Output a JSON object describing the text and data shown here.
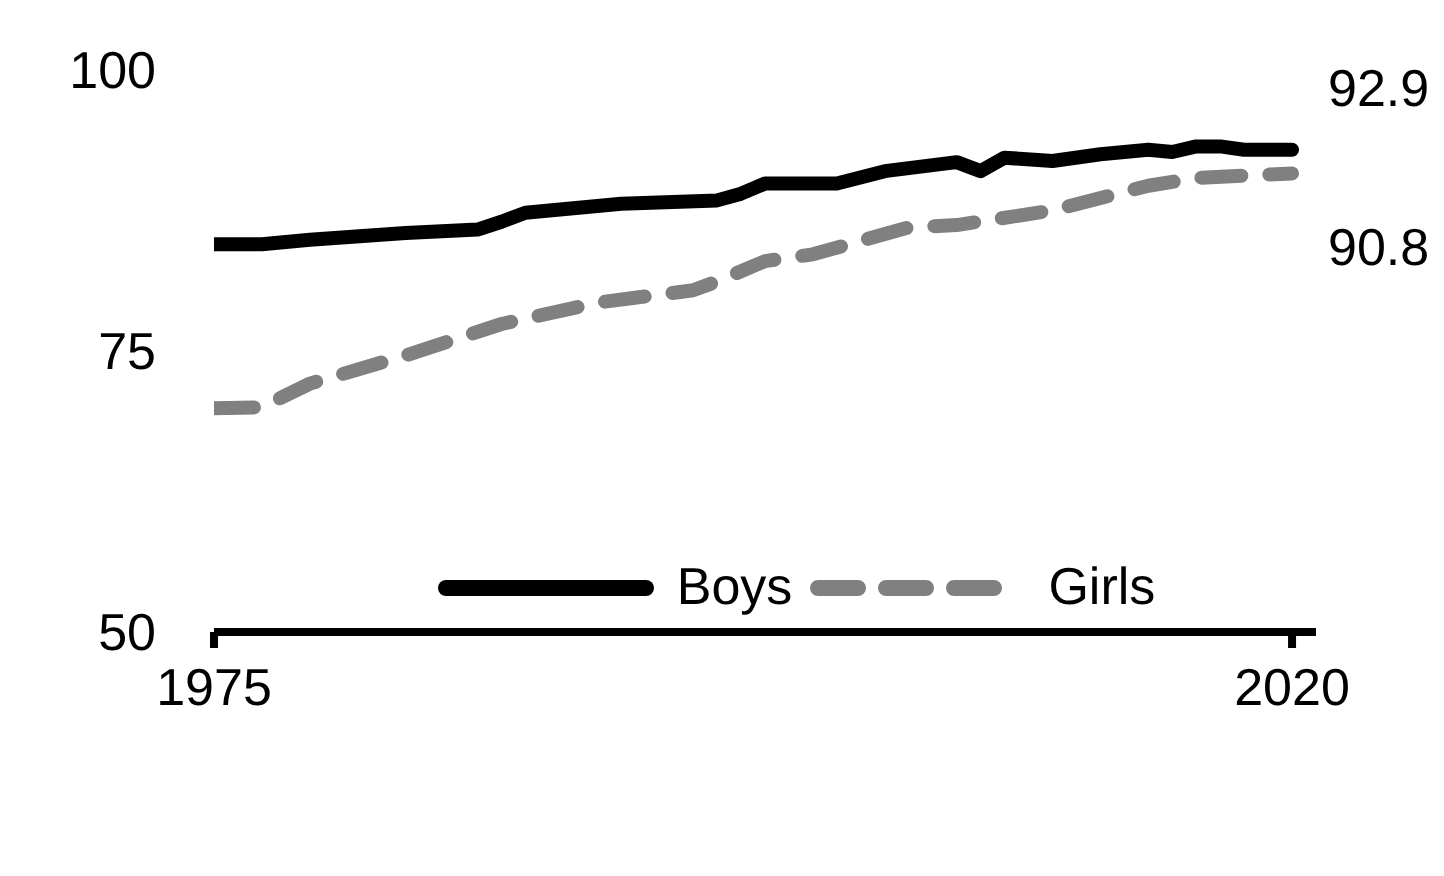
{
  "chart_data": {
    "type": "line",
    "x": [
      1975,
      1977,
      1979,
      1983,
      1986,
      1987,
      1988,
      1992,
      1996,
      1997,
      1998,
      2001,
      2003,
      2006,
      2007,
      2008,
      2010,
      2012,
      2014,
      2015,
      2016,
      2017,
      2018,
      2020
    ],
    "series": [
      {
        "name": "Boys",
        "color": "#000000",
        "line_style": "solid",
        "values": [
          84.5,
          84.5,
          84.9,
          85.5,
          85.8,
          86.5,
          87.3,
          88.1,
          88.4,
          89.0,
          89.9,
          89.9,
          91.0,
          91.8,
          91.0,
          92.2,
          91.9,
          92.5,
          92.9,
          92.7,
          93.2,
          93.2,
          92.9,
          92.9
        ]
      },
      {
        "name": "Girls",
        "color": "#808080",
        "line_style": "dashed",
        "x": [
          1975,
          1977,
          1979,
          1983,
          1987,
          1991,
          1995,
          1996,
          1998,
          2000,
          2004,
          2006,
          2010,
          2014,
          2016,
          2020
        ],
        "values": [
          69.9,
          70.0,
          72.1,
          74.6,
          77.4,
          79.3,
          80.4,
          81.2,
          83.0,
          83.6,
          86.0,
          86.2,
          87.5,
          89.7,
          90.4,
          90.8
        ]
      }
    ],
    "xlim": [
      1975,
      2021
    ],
    "xticks": [
      1975,
      2020
    ],
    "ylim": [
      50,
      100
    ],
    "yticks": [
      50,
      75,
      100
    ],
    "annotations": [
      {
        "text": "92.9",
        "x": 2020,
        "y": 92.9
      },
      {
        "text": "90.8",
        "x": 2020,
        "y": 90.8
      }
    ],
    "legend": "bottom",
    "grid": false,
    "marker": "none"
  }
}
